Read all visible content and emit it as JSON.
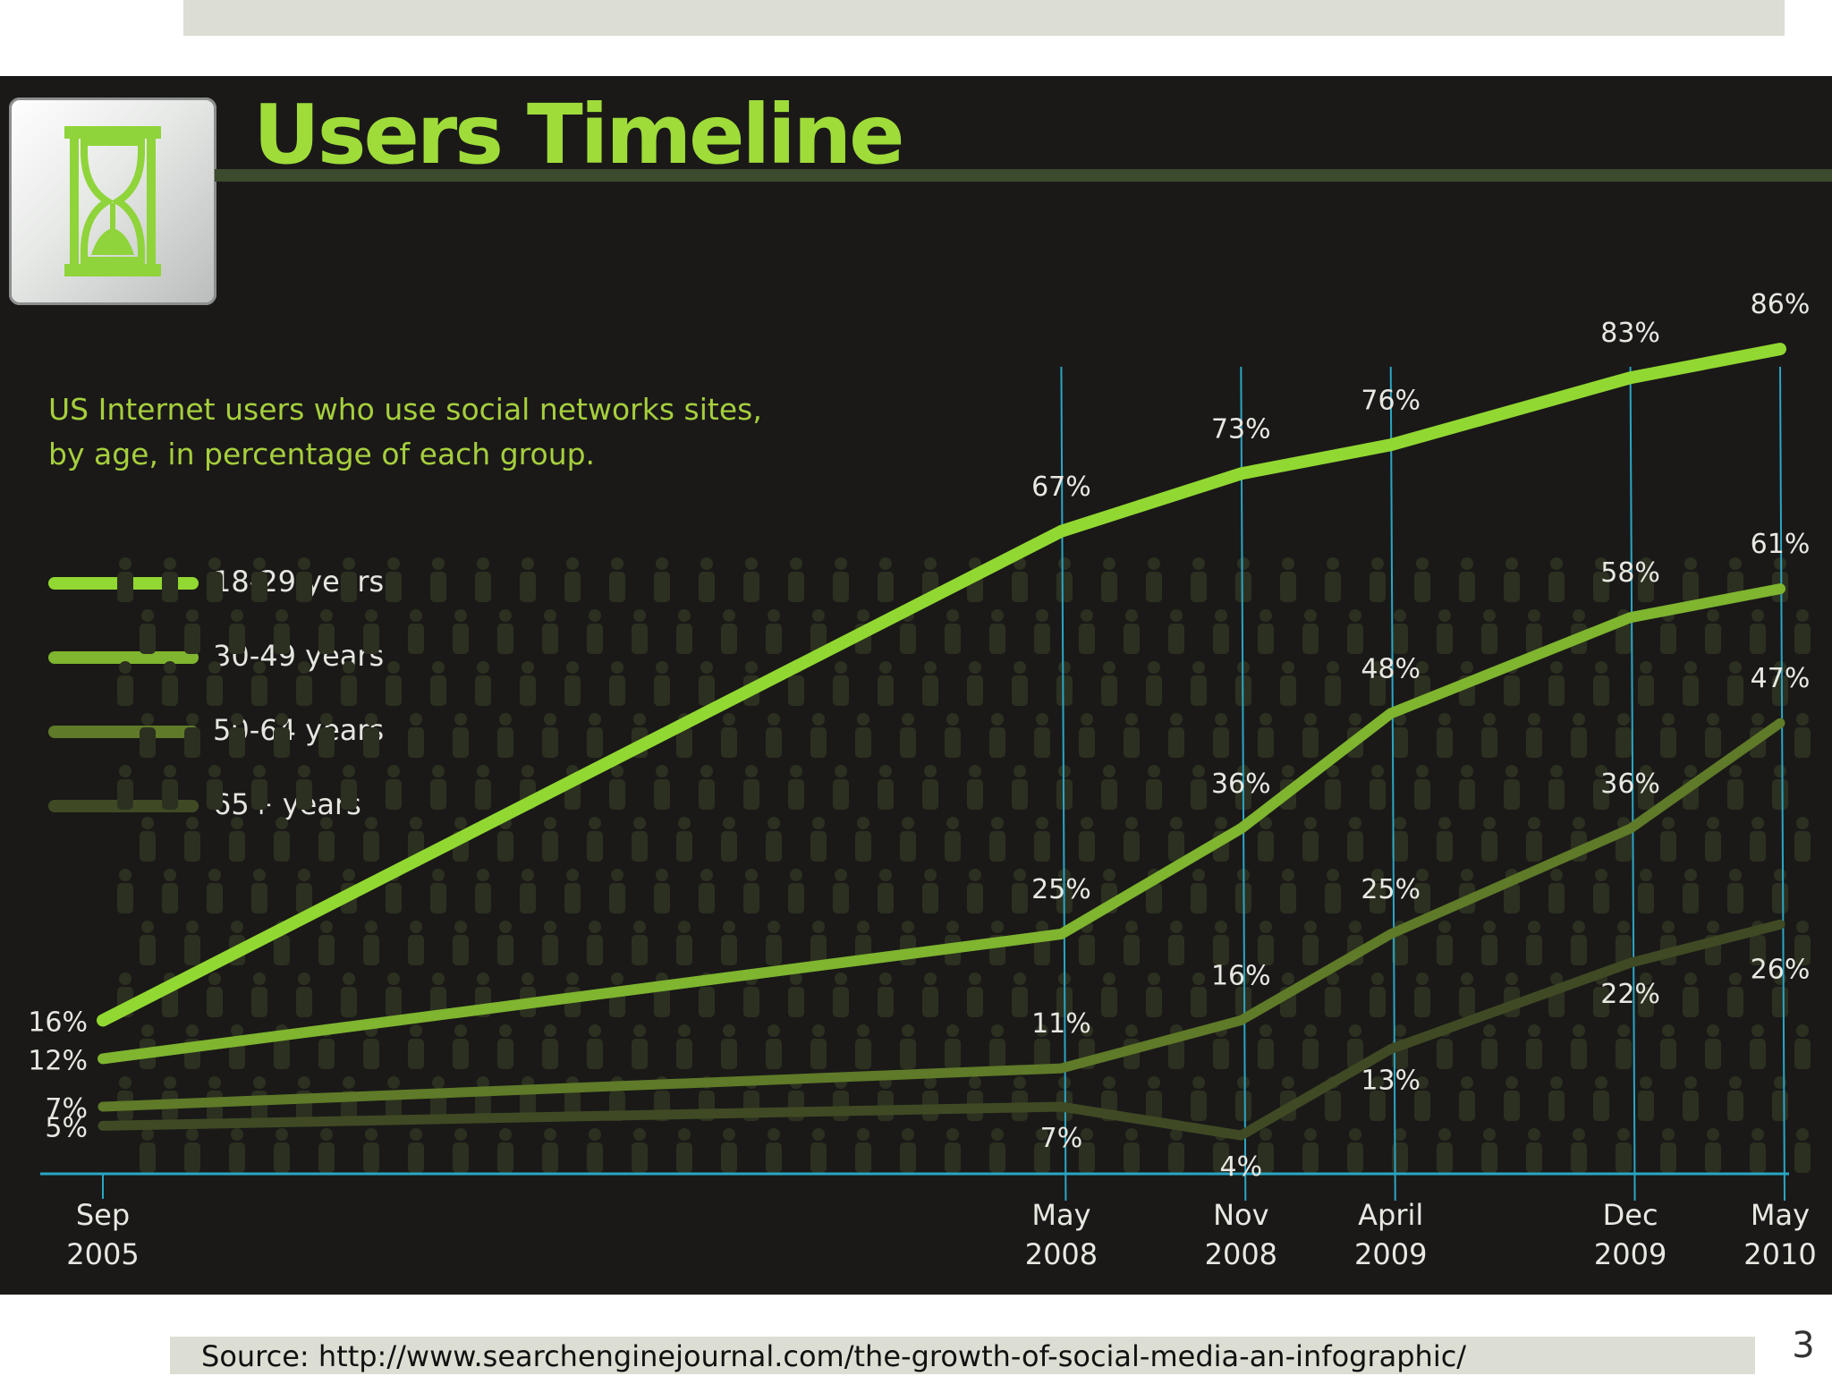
{
  "slide": {
    "source": "Source: http://www.searchenginejournal.com/the-growth-of-social-media-an-infographic/",
    "page_number": "3",
    "icon": "hourglass-icon"
  },
  "colors": {
    "background": "#1a1918",
    "title": "#9fdc3a",
    "axis": "#2aa6c4",
    "series": [
      "#92d832",
      "#7fb52f",
      "#5f7a28",
      "#3f4a24"
    ]
  },
  "chart_data": {
    "type": "line",
    "title": "Users Timeline",
    "subtitle_lines": [
      "US Internet users who use social networks sites,",
      "by age, in percentage of each group."
    ],
    "x_labels": [
      [
        "Sep",
        "2005"
      ],
      [
        "May",
        "2008"
      ],
      [
        "Nov",
        "2008"
      ],
      [
        "April",
        "2009"
      ],
      [
        "Dec",
        "2009"
      ],
      [
        "May",
        "2010"
      ]
    ],
    "x": [
      "2005-09",
      "2008-05",
      "2008-11",
      "2009-04",
      "2009-12",
      "2010-05"
    ],
    "ylim": [
      0,
      100
    ],
    "legend_position": "left",
    "grid": false,
    "series": [
      {
        "name": "18-29 years",
        "values": [
          16,
          67,
          73,
          76,
          83,
          86
        ],
        "labels": [
          "16%",
          "67%",
          "73%",
          "76%",
          "83%",
          "86%"
        ]
      },
      {
        "name": "30-49 years",
        "values": [
          12,
          25,
          36,
          48,
          58,
          61
        ],
        "labels": [
          "12%",
          "25%",
          "36%",
          "48%",
          "58%",
          "61%"
        ]
      },
      {
        "name": "50-64 years",
        "values": [
          7,
          11,
          16,
          25,
          36,
          47
        ],
        "labels": [
          "7%",
          "11%",
          "16%",
          "25%",
          "36%",
          "47%"
        ]
      },
      {
        "name": "65+ years",
        "values": [
          5,
          7,
          4,
          13,
          22,
          26
        ],
        "labels": [
          "5%",
          "7%",
          "4%",
          "13%",
          "22%",
          "26%"
        ]
      }
    ]
  }
}
